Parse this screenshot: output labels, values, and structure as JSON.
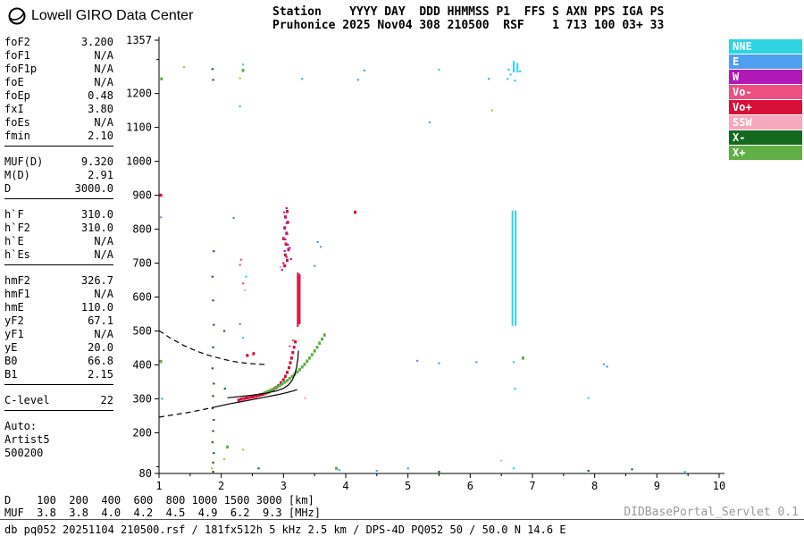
{
  "branding": {
    "logo_text": "Lowell GIRO Data Center"
  },
  "station_header": {
    "line1": "Station    YYYY DAY  DDD HHMMSS P1  FFS S AXN PPS IGA PS",
    "line2": "Pruhonice 2025 Nov04 308 210500  RSF    1 713 100 03+ 33"
  },
  "readouts": {
    "groups": [
      {
        "divider": true,
        "rows": [
          [
            "foF2",
            "3.200"
          ],
          [
            "foF1",
            "N/A"
          ],
          [
            "foF1p",
            "N/A"
          ],
          [
            "foE",
            "N/A"
          ],
          [
            "foEp",
            "0.48"
          ],
          [
            "fxI",
            "3.80"
          ],
          [
            "foEs",
            "N/A"
          ],
          [
            "fmin",
            "2.10"
          ]
        ]
      },
      {
        "divider": true,
        "rows": [
          [
            "MUF(D)",
            "9.320"
          ],
          [
            "M(D)",
            "2.91"
          ],
          [
            "D",
            "3000.0"
          ]
        ]
      },
      {
        "divider": true,
        "rows": [
          [
            "h`F",
            "310.0"
          ],
          [
            "h`F2",
            "310.0"
          ],
          [
            "h`E",
            "N/A"
          ],
          [
            "h`Es",
            "N/A"
          ]
        ]
      },
      {
        "divider": true,
        "rows": [
          [
            "hmF2",
            "326.7"
          ],
          [
            "hmF1",
            "N/A"
          ],
          [
            "hmE",
            "110.0"
          ],
          [
            "yF2",
            "67.1"
          ],
          [
            "yF1",
            "N/A"
          ],
          [
            "yE",
            "20.0"
          ],
          [
            "B0",
            "66.8"
          ],
          [
            "B1",
            "2.15"
          ]
        ]
      },
      {
        "divider": true,
        "rows": [
          [
            "C-level",
            "22"
          ]
        ]
      },
      {
        "divider": false,
        "lines": [
          "Auto:",
          "Artist5",
          "500200"
        ]
      }
    ]
  },
  "legend": {
    "items": [
      {
        "label": "NNE",
        "key": "nne",
        "color": "#2fd4e3"
      },
      {
        "label": "E",
        "key": "e",
        "color": "#4f9ff0"
      },
      {
        "label": "W",
        "key": "w",
        "color": "#b018b8"
      },
      {
        "label": "Vo-",
        "key": "vo-minus",
        "color": "#ee4f82"
      },
      {
        "label": "Vo+",
        "key": "vo-plus",
        "color": "#d81038"
      },
      {
        "label": "SSW",
        "key": "ssw",
        "color": "#f6a8bd"
      },
      {
        "label": "X-",
        "key": "x-minus",
        "color": "#15691f"
      },
      {
        "label": "X+",
        "key": "x-plus",
        "color": "#5fae46"
      }
    ]
  },
  "muf_table": {
    "d_row": "D    100  200  400  600  800 1000 1500 3000 [km]",
    "muf_row": "MUF  3.8  3.8  4.0  4.2  4.5  4.9  6.2  9.3 [MHz]",
    "distances_km": [
      100,
      200,
      400,
      600,
      800,
      1000,
      1500,
      3000
    ],
    "muf_mhz": [
      3.8,
      3.8,
      4.0,
      4.2,
      4.5,
      4.9,
      6.2,
      9.3
    ]
  },
  "footer": {
    "servlet_label": "DIDBasePortal_Servlet 0.1",
    "record_info": "db pq052 20251104 210500.rsf / 181fx512h 5 kHz 2.5 km / DPS-4D PQ052 50 / 50.0 N 14.6 E"
  },
  "chart_data": {
    "type": "scatter",
    "x_unit": "MHz",
    "y_unit": "km",
    "xlim": [
      1,
      10
    ],
    "ylim": [
      80,
      1357
    ],
    "xticks": [
      1,
      2,
      3,
      4,
      5,
      6,
      7,
      8,
      9,
      10
    ],
    "yticks_labeled": [
      1357,
      1200,
      1100,
      1000,
      900,
      800,
      700,
      600,
      500,
      400,
      300,
      200,
      80
    ],
    "yticks_minor": [
      100,
      1300
    ],
    "grid": false,
    "legend_position": "top-right",
    "series": [
      {
        "name": "Vo+",
        "key": "vo-plus",
        "color": "#d81038",
        "thick": true,
        "points": [
          [
            2.28,
            296
          ],
          [
            2.32,
            299
          ],
          [
            2.36,
            300
          ],
          [
            2.4,
            302
          ],
          [
            2.44,
            303
          ],
          [
            2.48,
            305
          ],
          [
            2.52,
            306
          ],
          [
            2.56,
            308
          ],
          [
            2.6,
            310
          ],
          [
            2.64,
            312
          ],
          [
            2.68,
            314
          ],
          [
            2.72,
            317
          ],
          [
            2.76,
            320
          ],
          [
            2.8,
            324
          ],
          [
            2.84,
            328
          ],
          [
            2.88,
            333
          ],
          [
            2.92,
            339
          ],
          [
            2.96,
            347
          ],
          [
            3.0,
            356
          ],
          [
            3.03,
            366
          ],
          [
            3.06,
            378
          ],
          [
            3.09,
            392
          ],
          [
            3.11,
            406
          ],
          [
            3.13,
            420
          ],
          [
            3.15,
            436
          ],
          [
            3.17,
            452
          ],
          [
            3.19,
            468
          ],
          [
            3.02,
            692
          ],
          [
            3.06,
            708
          ],
          [
            3.03,
            724
          ],
          [
            3.08,
            740
          ],
          [
            3.04,
            756
          ],
          [
            3.0,
            772
          ],
          [
            3.05,
            788
          ],
          [
            3.02,
            804
          ],
          [
            3.07,
            820
          ],
          [
            3.03,
            836
          ],
          [
            3.06,
            852
          ],
          [
            4.15,
            850
          ],
          [
            1.03,
            900
          ],
          [
            2.42,
            428
          ],
          [
            2.52,
            433
          ]
        ]
      },
      {
        "name": "W",
        "key": "w",
        "color": "#b018b8",
        "points": [
          [
            3.0,
            700
          ],
          [
            3.05,
            718
          ],
          [
            3.02,
            736
          ],
          [
            3.07,
            754
          ],
          [
            3.03,
            770
          ],
          [
            3.06,
            786
          ],
          [
            3.02,
            802
          ],
          [
            3.05,
            818
          ],
          [
            3.04,
            834
          ],
          [
            3.01,
            850
          ],
          [
            3.05,
            862
          ],
          [
            2.98,
            680
          ],
          [
            3.12,
            712
          ],
          [
            3.1,
            745
          ]
        ]
      },
      {
        "name": "X+",
        "key": "x-plus",
        "color": "#5fae46",
        "thick": true,
        "points": [
          [
            2.7,
            318
          ],
          [
            2.74,
            321
          ],
          [
            2.78,
            324
          ],
          [
            2.82,
            327
          ],
          [
            2.86,
            331
          ],
          [
            2.9,
            335
          ],
          [
            2.94,
            339
          ],
          [
            2.98,
            344
          ],
          [
            3.02,
            349
          ],
          [
            3.06,
            354
          ],
          [
            3.1,
            360
          ],
          [
            3.14,
            366
          ],
          [
            3.18,
            372
          ],
          [
            3.22,
            379
          ],
          [
            3.26,
            386
          ],
          [
            3.3,
            394
          ],
          [
            3.34,
            402
          ],
          [
            3.38,
            411
          ],
          [
            3.42,
            420
          ],
          [
            3.46,
            430
          ],
          [
            3.5,
            441
          ],
          [
            3.54,
            452
          ],
          [
            3.58,
            464
          ],
          [
            3.62,
            476
          ],
          [
            3.66,
            488
          ],
          [
            3.85,
            95
          ],
          [
            2.1,
            158
          ],
          [
            1.03,
            410
          ],
          [
            1.04,
            1243
          ],
          [
            2.35,
            1268
          ],
          [
            6.85,
            420
          ]
        ]
      },
      {
        "name": "X-",
        "key": "x-minus",
        "color": "#15691f",
        "points": [
          [
            1.87,
            85
          ],
          [
            1.87,
            112
          ],
          [
            1.88,
            140
          ],
          [
            1.86,
            172
          ],
          [
            1.87,
            205
          ],
          [
            1.88,
            238
          ],
          [
            1.86,
            272
          ],
          [
            1.87,
            308
          ],
          [
            1.88,
            345
          ],
          [
            1.86,
            390
          ],
          [
            1.87,
            452
          ],
          [
            1.88,
            518
          ],
          [
            1.87,
            590
          ],
          [
            1.86,
            660
          ],
          [
            1.88,
            735
          ],
          [
            1.87,
            1240
          ],
          [
            1.86,
            1272
          ],
          [
            2.05,
            500
          ],
          [
            2.06,
            330
          ],
          [
            2.6,
            95
          ],
          [
            7.9,
            88
          ],
          [
            8.6,
            92
          ],
          [
            5.5,
            85
          ]
        ]
      },
      {
        "name": "Vo-",
        "key": "vo-minus",
        "color": "#ee4f82",
        "points": [
          [
            2.35,
            297
          ],
          [
            2.45,
            300
          ],
          [
            2.55,
            304
          ],
          [
            2.3,
            695
          ],
          [
            2.32,
            710
          ],
          [
            3.1,
            455
          ],
          [
            3.15,
            472
          ],
          [
            2.35,
            640
          ]
        ]
      },
      {
        "name": "SSW",
        "key": "ssw",
        "color": "#f6a8bd",
        "points": [
          [
            2.38,
            620
          ],
          [
            2.95,
            688
          ],
          [
            6.5,
            118
          ],
          [
            3.35,
            302
          ]
        ]
      },
      {
        "name": "E",
        "key": "e",
        "color": "#4f9ff0",
        "points": [
          [
            1.03,
            835
          ],
          [
            2.2,
            833
          ],
          [
            3.3,
            1243
          ],
          [
            4.2,
            1240
          ],
          [
            4.3,
            1268
          ],
          [
            5.35,
            1115
          ],
          [
            3.55,
            762
          ],
          [
            3.6,
            748
          ],
          [
            3.5,
            692
          ],
          [
            6.1,
            408
          ],
          [
            8.15,
            402
          ],
          [
            8.2,
            395
          ],
          [
            5.15,
            412
          ],
          [
            6.3,
            1243
          ],
          [
            4.5,
            88
          ],
          [
            5.0,
            95
          ],
          [
            1.05,
            300
          ],
          [
            2.3,
            520
          ],
          [
            5.5,
            405
          ],
          [
            3.9,
            90
          ]
        ]
      },
      {
        "name": "NNE",
        "key": "nne",
        "color": "#2fd4e3",
        "points": [
          [
            2.3,
            1162
          ],
          [
            6.6,
            1243
          ],
          [
            6.65,
            1256
          ],
          [
            6.7,
            95
          ],
          [
            6.72,
            330
          ],
          [
            2.35,
            1285
          ],
          [
            6.7,
            408
          ],
          [
            5.5,
            1270
          ],
          [
            2.35,
            480
          ],
          [
            2.4,
            660
          ],
          [
            6.62,
            1270
          ],
          [
            6.8,
            1265
          ],
          [
            6.72,
            1238
          ],
          [
            7.9,
            302
          ],
          [
            9.45,
            85
          ]
        ]
      },
      {
        "name": "off-scale-yellow",
        "key": "off-scale-yellow",
        "color": "#c9bc3f",
        "points": [
          [
            2.3,
            1245
          ],
          [
            2.05,
            122
          ],
          [
            2.35,
            150
          ],
          [
            1.85,
            95
          ],
          [
            6.35,
            1150
          ],
          [
            1.4,
            1278
          ]
        ]
      }
    ],
    "vlines": [
      {
        "color": "#2fd4e3",
        "f": 6.68,
        "h1": 515,
        "h2": 855,
        "w": 2
      },
      {
        "color": "#2fd4e3",
        "f": 6.73,
        "h1": 515,
        "h2": 855,
        "w": 2
      },
      {
        "color": "#2fd4e3",
        "f": 6.7,
        "h1": 1262,
        "h2": 1296,
        "w": 2
      },
      {
        "color": "#2fd4e3",
        "f": 6.76,
        "h1": 1262,
        "h2": 1290,
        "w": 2
      },
      {
        "color": "#d81038",
        "f": 3.23,
        "h1": 512,
        "h2": 672,
        "w": 2
      },
      {
        "color": "#d81038",
        "f": 3.26,
        "h1": 520,
        "h2": 668,
        "w": 2
      }
    ],
    "traces": [
      {
        "name": "virtual-height-extrapolation",
        "style": "dashed",
        "points": [
          [
            1.0,
            501
          ],
          [
            1.2,
            477
          ],
          [
            1.4,
            457
          ],
          [
            1.6,
            441
          ],
          [
            1.8,
            428
          ],
          [
            2.0,
            418
          ],
          [
            2.2,
            410
          ],
          [
            2.4,
            405
          ],
          [
            2.6,
            402
          ],
          [
            2.75,
            401
          ]
        ]
      },
      {
        "name": "profile-bottom-extrapolation",
        "style": "dashed",
        "points": [
          [
            1.0,
            246
          ],
          [
            1.2,
            252
          ],
          [
            1.45,
            259
          ],
          [
            1.7,
            268
          ],
          [
            1.9,
            276
          ]
        ]
      },
      {
        "name": "o-trace-fit",
        "style": "solid",
        "points": [
          [
            2.1,
            303
          ],
          [
            2.3,
            307
          ],
          [
            2.5,
            311
          ],
          [
            2.7,
            316
          ],
          [
            2.9,
            324
          ],
          [
            3.0,
            331
          ],
          [
            3.08,
            341
          ],
          [
            3.14,
            355
          ],
          [
            3.18,
            372
          ],
          [
            3.21,
            393
          ],
          [
            3.23,
            418
          ],
          [
            3.24,
            442
          ]
        ]
      },
      {
        "name": "true-height-profile",
        "style": "solid",
        "points": [
          [
            1.9,
            276
          ],
          [
            2.15,
            286
          ],
          [
            2.4,
            294
          ],
          [
            2.65,
            303
          ],
          [
            2.9,
            312
          ],
          [
            3.05,
            318
          ],
          [
            3.15,
            323
          ],
          [
            3.2,
            326
          ],
          [
            3.22,
            327
          ]
        ]
      }
    ]
  }
}
